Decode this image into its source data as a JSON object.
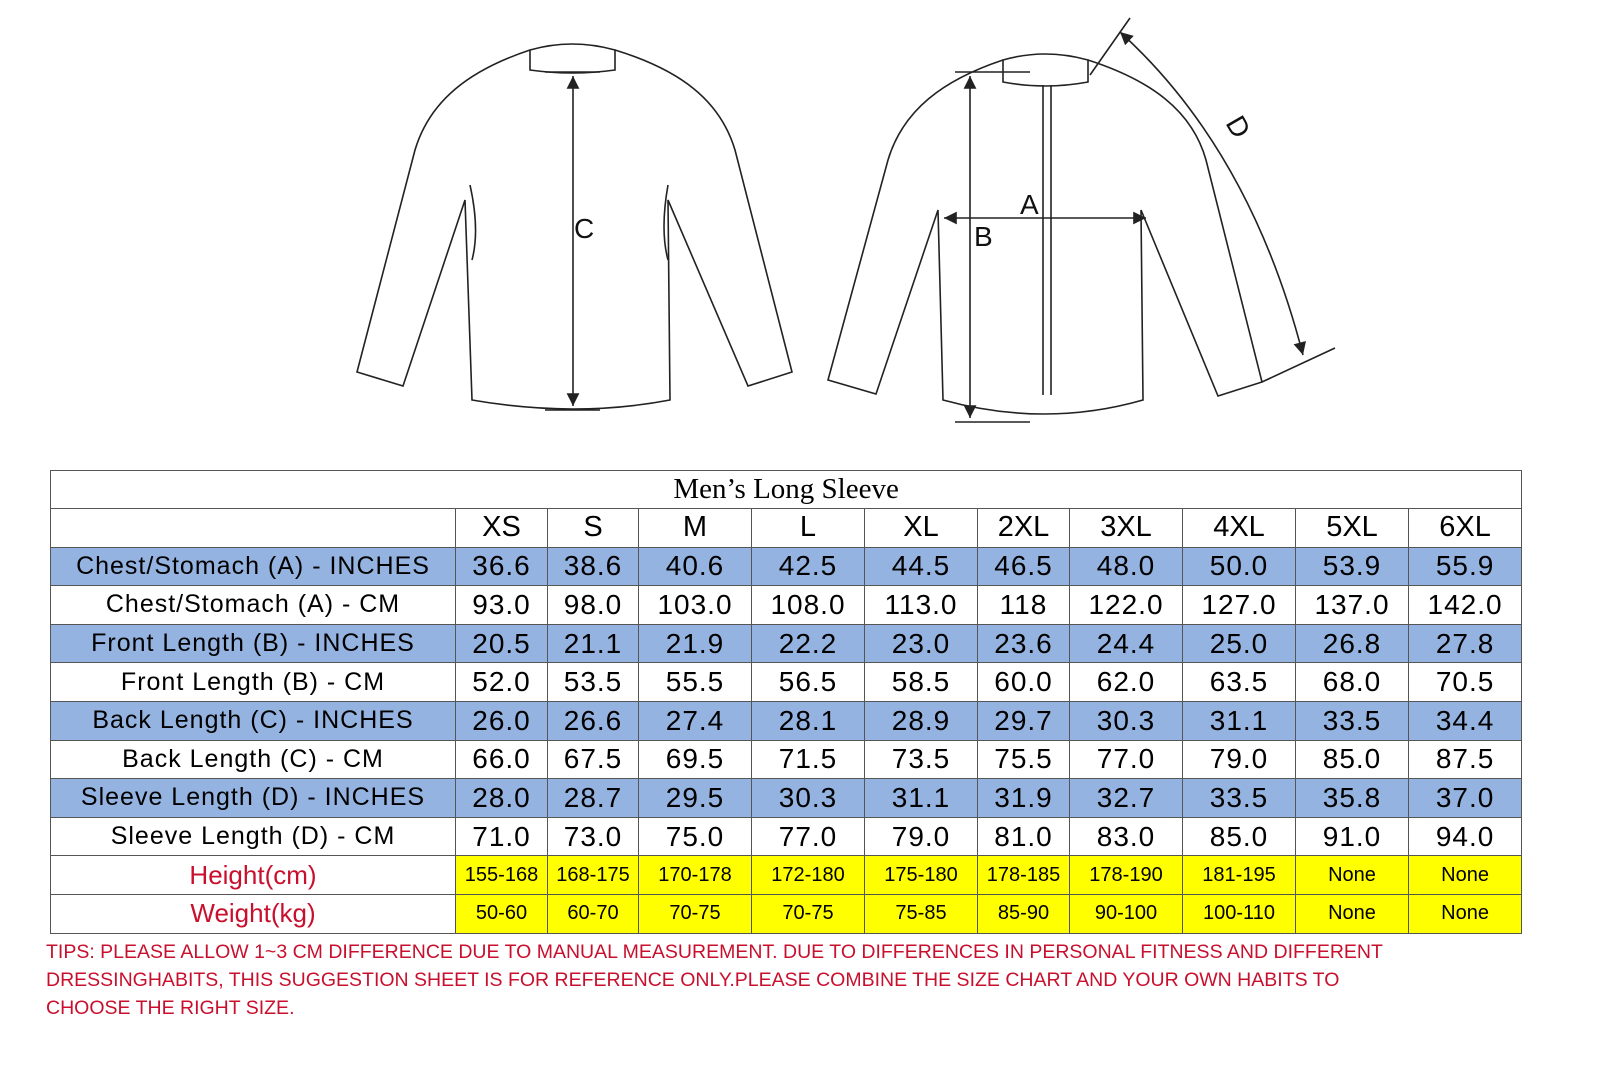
{
  "diagram": {
    "back_label": "C",
    "chest_label": "A",
    "front_label": "B",
    "sleeve_label": "D"
  },
  "table": {
    "title": "Men’s Long Sleeve",
    "sizes": [
      "XS",
      "S",
      "M",
      "L",
      "XL",
      "2XL",
      "3XL",
      "4XL",
      "5XL",
      "6XL"
    ],
    "rows": [
      {
        "label": "Chest/Stomach (A) - INCHES",
        "values": [
          "36.6",
          "38.6",
          "40.6",
          "42.5",
          "44.5",
          "46.5",
          "48.0",
          "50.0",
          "53.9",
          "55.9"
        ]
      },
      {
        "label": "Chest/Stomach (A) - CM",
        "values": [
          "93.0",
          "98.0",
          "103.0",
          "108.0",
          "113.0",
          "118",
          "122.0",
          "127.0",
          "137.0",
          "142.0"
        ]
      },
      {
        "label": "Front Length (B) - INCHES",
        "values": [
          "20.5",
          "21.1",
          "21.9",
          "22.2",
          "23.0",
          "23.6",
          "24.4",
          "25.0",
          "26.8",
          "27.8"
        ]
      },
      {
        "label": "Front Length (B) - CM",
        "values": [
          "52.0",
          "53.5",
          "55.5",
          "56.5",
          "58.5",
          "60.0",
          "62.0",
          "63.5",
          "68.0",
          "70.5"
        ]
      },
      {
        "label": "Back Length (C) - INCHES",
        "values": [
          "26.0",
          "26.6",
          "27.4",
          "28.1",
          "28.9",
          "29.7",
          "30.3",
          "31.1",
          "33.5",
          "34.4"
        ]
      },
      {
        "label": "Back Length (C) - CM",
        "values": [
          "66.0",
          "67.5",
          "69.5",
          "71.5",
          "73.5",
          "75.5",
          "77.0",
          "79.0",
          "85.0",
          "87.5"
        ]
      },
      {
        "label": "Sleeve Length (D) - INCHES",
        "values": [
          "28.0",
          "28.7",
          "29.5",
          "30.3",
          "31.1",
          "31.9",
          "32.7",
          "33.5",
          "35.8",
          "37.0"
        ]
      },
      {
        "label": "Sleeve Length (D) - CM",
        "values": [
          "71.0",
          "73.0",
          "75.0",
          "77.0",
          "79.0",
          "81.0",
          "83.0",
          "85.0",
          "91.0",
          "94.0"
        ]
      },
      {
        "label": "Height(cm)",
        "values": [
          "155-168",
          "168-175",
          "170-178",
          "172-180",
          "175-180",
          "178-185",
          "178-190",
          "181-195",
          "None",
          "None"
        ]
      },
      {
        "label": "Weight(kg)",
        "values": [
          "50-60",
          "60-70",
          "70-75",
          "70-75",
          "75-85",
          "85-90",
          "90-100",
          "100-110",
          "None",
          "None"
        ]
      }
    ]
  },
  "tips": [
    "TIPS: PLEASE ALLOW 1~3 CM DIFFERENCE DUE TO MANUAL MEASUREMENT. DUE TO DIFFERENCES IN PERSONAL FITNESS AND DIFFERENT",
    "DRESSINGHABITS, THIS SUGGESTION SHEET IS FOR REFERENCE ONLY.PLEASE COMBINE THE SIZE CHART AND YOUR OWN HABITS TO",
    "CHOOSE THE RIGHT SIZE."
  ]
}
